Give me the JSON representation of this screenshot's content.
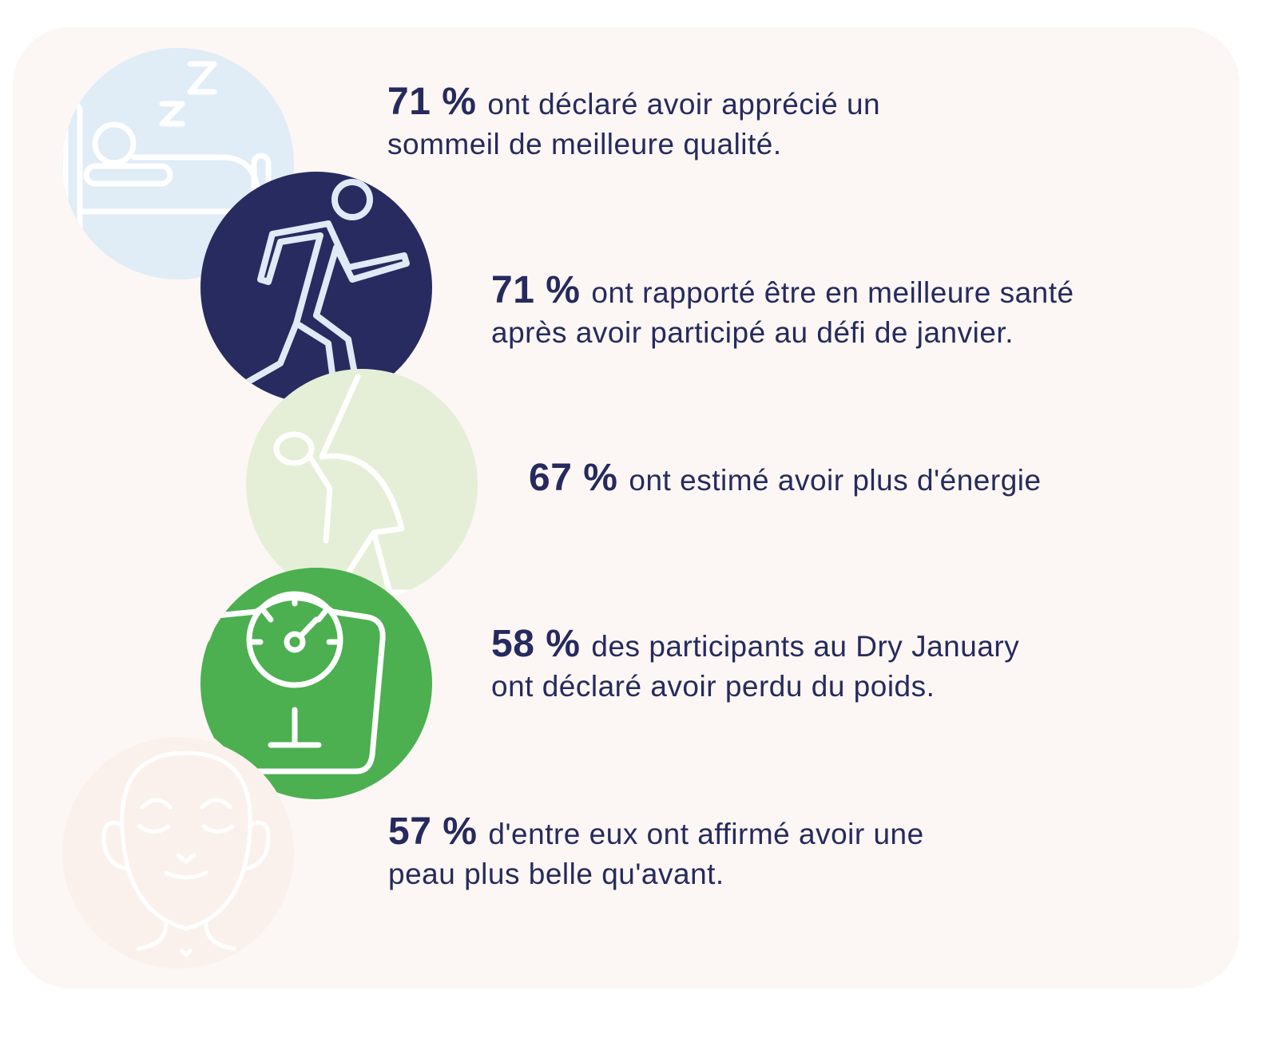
{
  "colors": {
    "card_bg": "#fcf7f4",
    "text": "#262a5e",
    "sleep": "#e0ecf6",
    "running": "#282b5f",
    "energy": "#e5efd7",
    "weight": "#4caf50",
    "skin": "#faf1ec"
  },
  "stats": [
    {
      "icon": "sleeping-in-bed-icon",
      "value": "71 %",
      "line1": "ont déclaré avoir apprécié un",
      "line2": "sommeil de meilleure qualité."
    },
    {
      "icon": "running-person-icon",
      "value": "71 %",
      "line1": "ont rapporté être en meilleure santé",
      "line2": "après avoir participé au défi de janvier."
    },
    {
      "icon": "stretching-person-icon",
      "value": "67 %",
      "line1": "ont estimé avoir plus d'énergie"
    },
    {
      "icon": "bathroom-scale-icon",
      "value": "58 %",
      "line1": "des participants au Dry January",
      "line2": "ont déclaré avoir perdu du poids."
    },
    {
      "icon": "smiling-face-icon",
      "value": "57 %",
      "line1": "d'entre eux ont affirmé avoir une",
      "line2": "peau plus belle qu'avant."
    }
  ]
}
